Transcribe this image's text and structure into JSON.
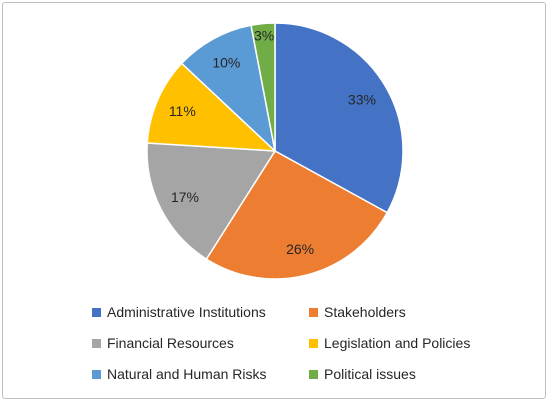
{
  "chart_data": {
    "type": "pie",
    "title": "",
    "legend_position": "bottom",
    "slices": [
      {
        "label": "Administrative Institutions",
        "value": 33,
        "display": "33%",
        "color": "#4472C4"
      },
      {
        "label": "Stakeholders",
        "value": 26,
        "display": "26%",
        "color": "#ED7D31"
      },
      {
        "label": "Financial Resources",
        "value": 17,
        "display": "17%",
        "color": "#A5A5A5"
      },
      {
        "label": "Legislation and Policies",
        "value": 11,
        "display": "11%",
        "color": "#FFC000"
      },
      {
        "label": "Natural and Human Risks",
        "value": 10,
        "display": "10%",
        "color": "#5B9BD5"
      },
      {
        "label": "Political issues",
        "value": 3,
        "display": "3%",
        "color": "#70AD47"
      }
    ]
  }
}
